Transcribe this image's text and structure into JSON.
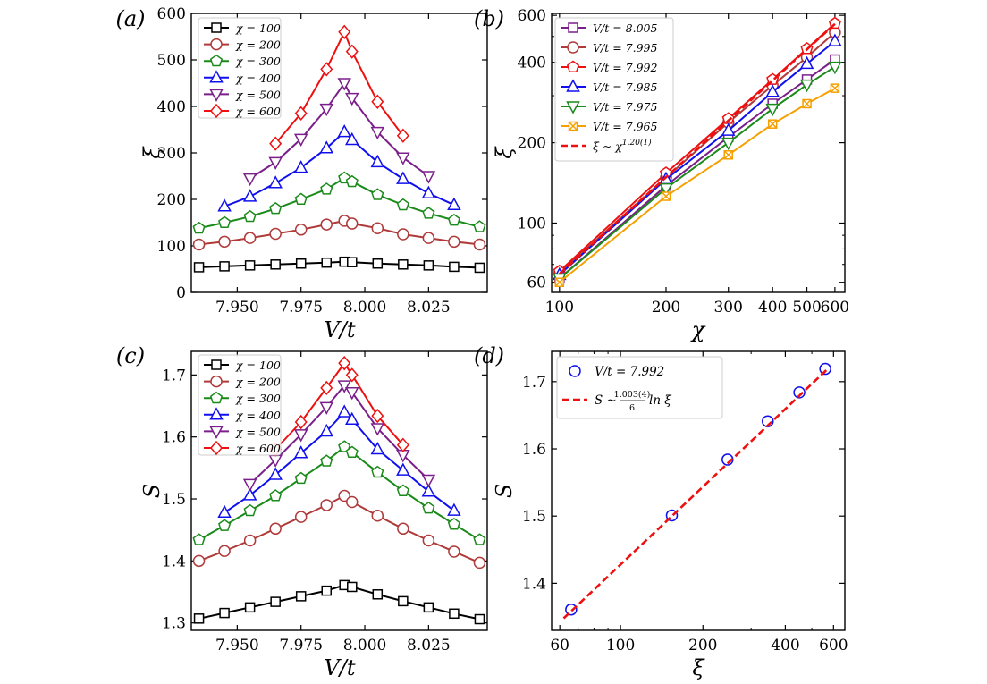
{
  "chart_data": [
    {
      "panel": "(a)",
      "type": "line",
      "xlabel": "V/t",
      "ylabel": "ξ",
      "xlim": [
        7.932,
        8.048
      ],
      "ylim": [
        0,
        600
      ],
      "xticks": [
        "7.950",
        "7.975",
        "8.000",
        "8.025"
      ],
      "xtick_values": [
        7.95,
        7.975,
        8.0,
        8.025
      ],
      "yticks": [
        "0",
        "100",
        "200",
        "300",
        "400",
        "500",
        "600"
      ],
      "ytick_values": [
        0,
        100,
        200,
        300,
        400,
        500,
        600
      ],
      "legend_position": "top-left",
      "series": [
        {
          "name": "χ = 100",
          "color": "#000000",
          "marker": "square",
          "x": [
            7.935,
            7.945,
            7.955,
            7.965,
            7.975,
            7.985,
            7.992,
            7.995,
            8.005,
            8.015,
            8.025,
            8.035,
            8.045
          ],
          "y": [
            54,
            56,
            58,
            60,
            62,
            64,
            66,
            65,
            62,
            60,
            58,
            55,
            53
          ]
        },
        {
          "name": "χ = 200",
          "color": "#b03a3a",
          "marker": "circle",
          "x": [
            7.935,
            7.945,
            7.955,
            7.965,
            7.975,
            7.985,
            7.992,
            7.995,
            8.005,
            8.015,
            8.025,
            8.035,
            8.045
          ],
          "y": [
            103,
            109,
            117,
            126,
            135,
            146,
            154,
            148,
            138,
            125,
            117,
            109,
            103
          ]
        },
        {
          "name": "χ = 300",
          "color": "#1a8a1a",
          "marker": "pentagon",
          "x": [
            7.935,
            7.945,
            7.955,
            7.965,
            7.975,
            7.985,
            7.992,
            7.995,
            8.005,
            8.015,
            8.025,
            8.035,
            8.045
          ],
          "y": [
            138,
            150,
            163,
            180,
            200,
            222,
            246,
            238,
            210,
            188,
            170,
            155,
            141
          ]
        },
        {
          "name": "χ = 400",
          "color": "#1010ee",
          "marker": "triangle-up",
          "x": [
            7.945,
            7.955,
            7.965,
            7.975,
            7.985,
            7.992,
            7.995,
            8.005,
            8.015,
            8.025,
            8.035
          ],
          "y": [
            185,
            206,
            235,
            268,
            310,
            345,
            328,
            280,
            244,
            213,
            188
          ]
        },
        {
          "name": "χ = 500",
          "color": "#7b1f8a",
          "marker": "triangle-down",
          "x": [
            7.955,
            7.965,
            7.975,
            7.985,
            7.992,
            7.995,
            8.005,
            8.015,
            8.025
          ],
          "y": [
            245,
            280,
            330,
            395,
            450,
            418,
            345,
            290,
            250
          ]
        },
        {
          "name": "χ = 600",
          "color": "#ee1010",
          "marker": "diamond",
          "x": [
            7.965,
            7.975,
            7.985,
            7.992,
            7.995,
            8.005,
            8.015
          ],
          "y": [
            320,
            385,
            480,
            560,
            518,
            410,
            337
          ]
        }
      ]
    },
    {
      "panel": "(b)",
      "type": "line",
      "scale": "log-log",
      "xlabel": "χ",
      "ylabel": "ξ",
      "xlim": [
        95,
        640
      ],
      "ylim": [
        55,
        610
      ],
      "xticks": [
        "100",
        "200",
        "300",
        "400",
        "500",
        "600"
      ],
      "xtick_values": [
        100,
        200,
        300,
        400,
        500,
        600
      ],
      "yticks": [
        "60",
        "100",
        "200",
        "400",
        "600"
      ],
      "ytick_values": [
        60,
        100,
        200,
        400,
        600
      ],
      "legend_position": "top-left",
      "series": [
        {
          "name": "V/t = 8.005",
          "color": "#7b1f8a",
          "marker": "square",
          "x": [
            100,
            200,
            300,
            400,
            500,
            600
          ],
          "y": [
            62,
            138,
            210,
            280,
            345,
            410
          ]
        },
        {
          "name": "V/t = 7.995",
          "color": "#b03a3a",
          "marker": "circle",
          "x": [
            100,
            200,
            300,
            400,
            500,
            600
          ],
          "y": [
            65,
            148,
            238,
            328,
            418,
            518
          ]
        },
        {
          "name": "V/t = 7.992",
          "color": "#ee1010",
          "marker": "pentagon",
          "x": [
            100,
            200,
            300,
            400,
            500,
            600
          ],
          "y": [
            66,
            154,
            246,
            345,
            450,
            560
          ]
        },
        {
          "name": "V/t = 7.985",
          "color": "#1010ee",
          "marker": "triangle-up",
          "x": [
            100,
            200,
            300,
            400,
            500,
            600
          ],
          "y": [
            64,
            146,
            222,
            310,
            395,
            480
          ]
        },
        {
          "name": "V/t = 7.975",
          "color": "#1a8a1a",
          "marker": "triangle-down",
          "x": [
            100,
            200,
            300,
            400,
            500,
            600
          ],
          "y": [
            62,
            135,
            200,
            268,
            330,
            385
          ]
        },
        {
          "name": "V/t = 7.965",
          "color": "#f5a000",
          "marker": "x-square",
          "x": [
            100,
            200,
            300,
            400,
            500,
            600
          ],
          "y": [
            60,
            126,
            180,
            235,
            280,
            320
          ]
        },
        {
          "name": "ξ ∼ χ^1.20(1)",
          "label_base": "ξ ∼ χ",
          "label_exp": "1.20(1)",
          "color": "#ee1010",
          "marker": "none",
          "dashed": true,
          "x": [
            100,
            600
          ],
          "y": [
            64.5,
            557
          ]
        }
      ]
    },
    {
      "panel": "(c)",
      "type": "line",
      "xlabel": "V/t",
      "ylabel": "S",
      "xlim": [
        7.932,
        8.048
      ],
      "ylim": [
        1.288,
        1.738
      ],
      "xticks": [
        "7.950",
        "7.975",
        "8.000",
        "8.025"
      ],
      "xtick_values": [
        7.95,
        7.975,
        8.0,
        8.025
      ],
      "yticks": [
        "1.3",
        "1.4",
        "1.5",
        "1.6",
        "1.7"
      ],
      "ytick_values": [
        1.3,
        1.4,
        1.5,
        1.6,
        1.7
      ],
      "legend_position": "top-left",
      "series": [
        {
          "name": "χ = 100",
          "color": "#000000",
          "marker": "square",
          "x": [
            7.935,
            7.945,
            7.955,
            7.965,
            7.975,
            7.985,
            7.992,
            7.995,
            8.005,
            8.015,
            8.025,
            8.035,
            8.045
          ],
          "y": [
            1.307,
            1.316,
            1.325,
            1.334,
            1.343,
            1.352,
            1.361,
            1.358,
            1.346,
            1.335,
            1.325,
            1.315,
            1.306
          ]
        },
        {
          "name": "χ = 200",
          "color": "#b03a3a",
          "marker": "circle",
          "x": [
            7.935,
            7.945,
            7.955,
            7.965,
            7.975,
            7.985,
            7.992,
            7.995,
            8.005,
            8.015,
            8.025,
            8.035,
            8.045
          ],
          "y": [
            1.4,
            1.416,
            1.433,
            1.452,
            1.471,
            1.49,
            1.505,
            1.495,
            1.473,
            1.452,
            1.433,
            1.415,
            1.397
          ]
        },
        {
          "name": "χ = 300",
          "color": "#1a8a1a",
          "marker": "pentagon",
          "x": [
            7.935,
            7.945,
            7.955,
            7.965,
            7.975,
            7.985,
            7.992,
            7.995,
            8.005,
            8.015,
            8.025,
            8.035,
            8.045
          ],
          "y": [
            1.434,
            1.457,
            1.481,
            1.505,
            1.533,
            1.561,
            1.584,
            1.575,
            1.543,
            1.513,
            1.485,
            1.459,
            1.434
          ]
        },
        {
          "name": "χ = 400",
          "color": "#1010ee",
          "marker": "triangle-up",
          "x": [
            7.945,
            7.955,
            7.965,
            7.975,
            7.985,
            7.992,
            7.995,
            8.005,
            8.015,
            8.025,
            8.035
          ],
          "y": [
            1.478,
            1.506,
            1.539,
            1.574,
            1.609,
            1.64,
            1.628,
            1.58,
            1.546,
            1.512,
            1.481
          ]
        },
        {
          "name": "χ = 500",
          "color": "#7b1f8a",
          "marker": "triangle-down",
          "x": [
            7.955,
            7.965,
            7.975,
            7.985,
            7.992,
            7.995,
            8.005,
            8.015,
            8.025
          ],
          "y": [
            1.524,
            1.563,
            1.604,
            1.648,
            1.683,
            1.672,
            1.614,
            1.571,
            1.531
          ]
        },
        {
          "name": "χ = 600",
          "color": "#ee1010",
          "marker": "diamond",
          "x": [
            7.965,
            7.975,
            7.985,
            7.992,
            7.995,
            8.005,
            8.015
          ],
          "y": [
            1.58,
            1.624,
            1.679,
            1.719,
            1.7,
            1.634,
            1.587
          ]
        }
      ]
    },
    {
      "panel": "(d)",
      "type": "scatter",
      "scale": "log-x",
      "xlabel": "ξ",
      "ylabel": "S",
      "xlim": [
        56,
        660
      ],
      "ylim": [
        1.33,
        1.745
      ],
      "xticks": [
        "60",
        "100",
        "200",
        "400",
        "600"
      ],
      "xtick_values": [
        60,
        100,
        200,
        400,
        600
      ],
      "yticks": [
        "1.4",
        "1.5",
        "1.6",
        "1.7"
      ],
      "ytick_values": [
        1.4,
        1.5,
        1.6,
        1.7
      ],
      "legend_position": "top-left",
      "series": [
        {
          "name": "V/t = 7.992",
          "color": "#1010ee",
          "marker": "circle",
          "x": [
            66,
            154,
            246,
            345,
            450,
            560
          ],
          "y": [
            1.361,
            1.501,
            1.584,
            1.641,
            1.684,
            1.719
          ]
        },
        {
          "name": "S ∼ 1.003(4)/6 ln ξ",
          "label_base": "S ∼",
          "label_num": "1.003(4)",
          "label_den": "6",
          "label_tail": "ln ξ",
          "color": "#ee1010",
          "marker": "none",
          "dashed": true,
          "x": [
            62,
            575
          ],
          "y": [
            1.348,
            1.72
          ]
        }
      ]
    }
  ]
}
